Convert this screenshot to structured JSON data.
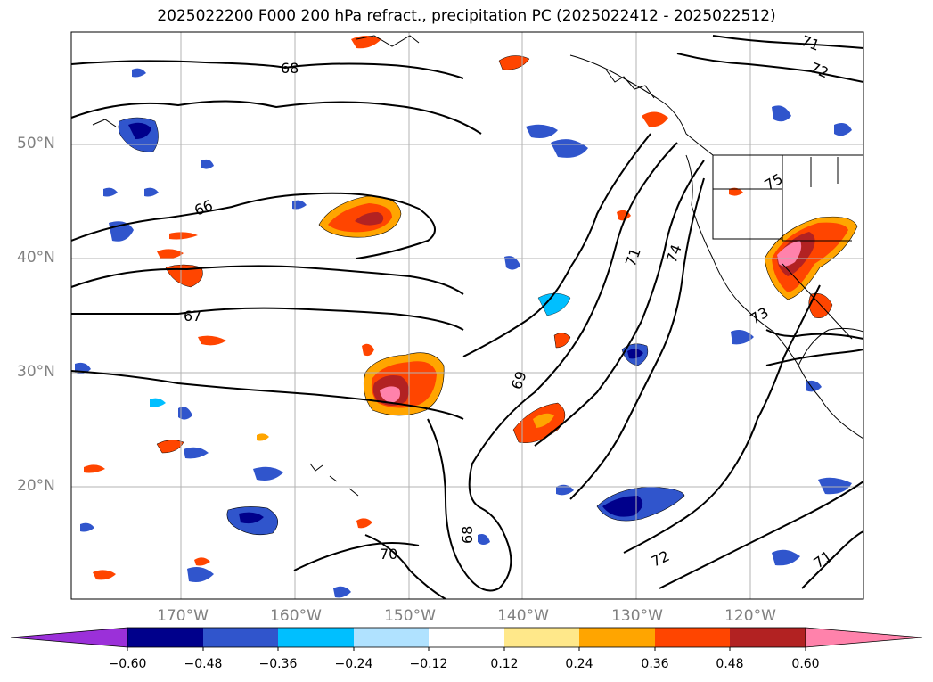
{
  "title": "2025022200 F000 200 hPa refract., precipitation PC (2025022412 - 2025022512)",
  "map": {
    "lat_ticks": [
      "50°N",
      "40°N",
      "30°N",
      "20°N"
    ],
    "lon_ticks": [
      "170°W",
      "160°W",
      "150°W",
      "140°W",
      "130°W",
      "120°W"
    ],
    "contour_labels": [
      "68",
      "66",
      "67",
      "71",
      "72",
      "71",
      "74",
      "75",
      "73",
      "69",
      "68",
      "70",
      "72",
      "71"
    ]
  },
  "colorbar": {
    "ticks": [
      "−0.60",
      "−0.48",
      "−0.36",
      "−0.24",
      "−0.12",
      "0.12",
      "0.24",
      "0.36",
      "0.48",
      "0.60"
    ],
    "colors": [
      "#9b30d9",
      "#00008b",
      "#3055cc",
      "#00bfff",
      "#b0e2ff",
      "#ffffff",
      "#ffe88a",
      "#ffa500",
      "#ff4500",
      "#b22222",
      "#ff82ab"
    ]
  }
}
